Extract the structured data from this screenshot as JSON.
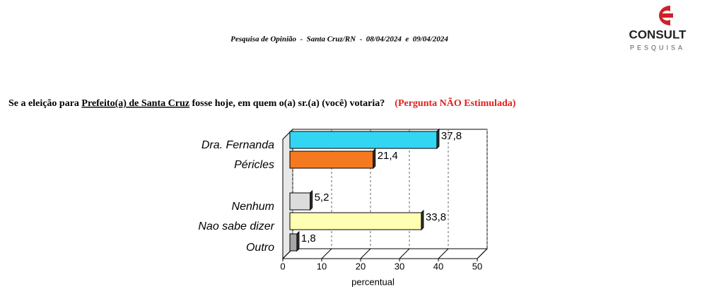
{
  "header": {
    "subtitle": "Pesquisa de Opinião  -  Santa Cruz/RN  -  08/04/2024  e  09/04/2024",
    "logo_name": "CONSULT",
    "logo_sub": "PESQUISA"
  },
  "question": {
    "prefix": "Se a eleição para ",
    "underlined": "Prefeito(a) de Santa Cruz",
    "suffix": " fosse hoje, em quem o(a) sr.(a) (você) votaria?",
    "note": "(Pergunta NÃO Estimulada)"
  },
  "chart_data": {
    "type": "bar",
    "orientation": "horizontal",
    "categories": [
      "Dra. Fernanda",
      "Péricles",
      null,
      "Nenhum",
      "Nao sabe dizer",
      "Outro"
    ],
    "values": [
      37.8,
      21.4,
      null,
      5.2,
      33.8,
      1.8
    ],
    "value_labels": [
      "37,8",
      "21,4",
      null,
      "5,2",
      "33,8",
      "1,8"
    ],
    "colors": [
      "#33d6f2",
      "#f57a1f",
      null,
      "#dcdcdc",
      "#ffffb3",
      "#a6a6a6"
    ],
    "xlabel": "percentual",
    "xlim": [
      0,
      50
    ],
    "xticks": [
      0,
      10,
      20,
      30,
      40,
      50
    ],
    "grid": true
  }
}
